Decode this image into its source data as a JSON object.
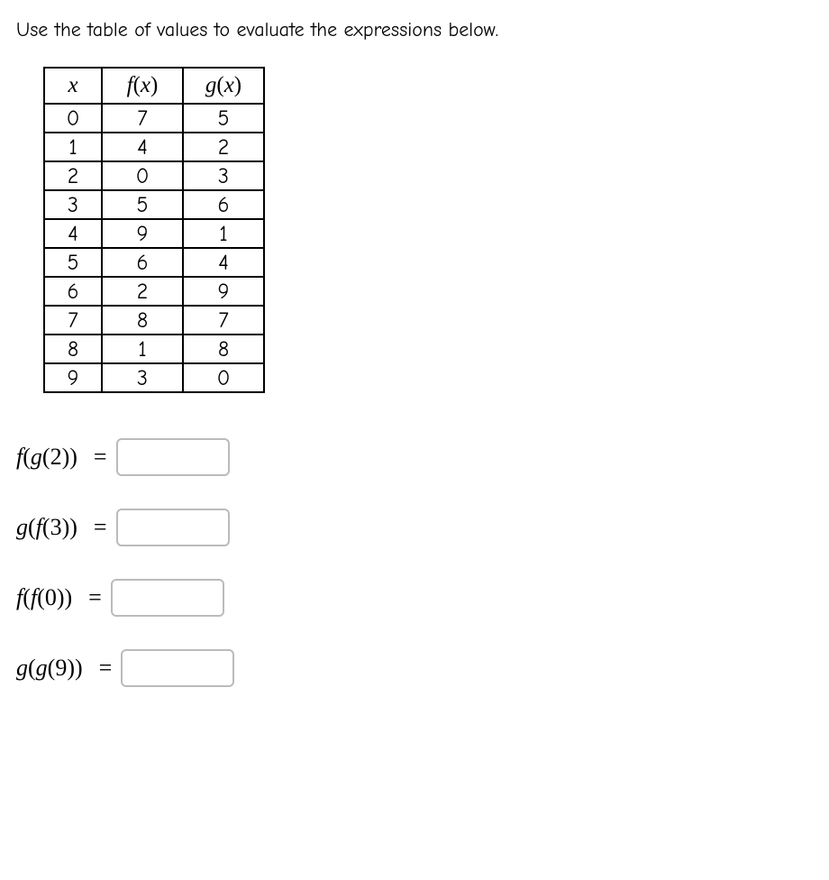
{
  "instruction": "Use the table of values to evaluate the expressions below.",
  "table": {
    "headers": {
      "x": "x",
      "fx": "f(x)",
      "gx": "g(x)"
    },
    "rows": [
      {
        "x": "0",
        "fx": "7",
        "gx": "5"
      },
      {
        "x": "1",
        "fx": "4",
        "gx": "2"
      },
      {
        "x": "2",
        "fx": "0",
        "gx": "3"
      },
      {
        "x": "3",
        "fx": "5",
        "gx": "6"
      },
      {
        "x": "4",
        "fx": "9",
        "gx": "1"
      },
      {
        "x": "5",
        "fx": "6",
        "gx": "4"
      },
      {
        "x": "6",
        "fx": "2",
        "gx": "9"
      },
      {
        "x": "7",
        "fx": "8",
        "gx": "7"
      },
      {
        "x": "8",
        "fx": "1",
        "gx": "8"
      },
      {
        "x": "9",
        "fx": "3",
        "gx": "0"
      }
    ]
  },
  "expressions": [
    {
      "outer": "f",
      "inner": "g",
      "arg": "2",
      "value": ""
    },
    {
      "outer": "g",
      "inner": "f",
      "arg": "3",
      "value": ""
    },
    {
      "outer": "f",
      "inner": "f",
      "arg": "0",
      "value": ""
    },
    {
      "outer": "g",
      "inner": "g",
      "arg": "9",
      "value": ""
    }
  ],
  "style": {
    "table_border_color": "#000000",
    "input_border_color": "#bbbbbb",
    "background": "#ffffff"
  }
}
